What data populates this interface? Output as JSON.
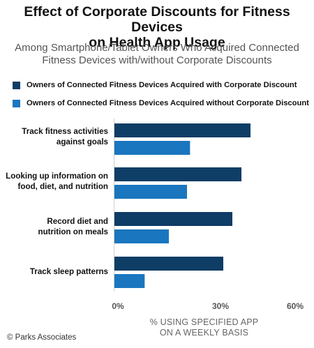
{
  "chart_data": {
    "type": "bar",
    "orientation": "horizontal",
    "title": "Effect of Corporate Discounts for Fitness Devices on Health App Usage",
    "subtitle": "Among Smartphone/Tablet Owners Who Acquired Connected Fitness Devices with/without Corporate Discounts",
    "categories": [
      "Track fitness activities against goals",
      "Looking up information on food, diet, and nutrition",
      "Record diet and nutrition on meals",
      "Track sleep patterns"
    ],
    "series": [
      {
        "name": "Owners of Connected Fitness Devices Acquired with Corporate Discount",
        "color": "#0e3d66",
        "values": [
          45,
          42,
          39,
          36
        ]
      },
      {
        "name": "Owners of Connected Fitness Devices Acquired without Corporate Discount",
        "color": "#1a76bf",
        "values": [
          25,
          24,
          18,
          10
        ]
      }
    ],
    "xlim": [
      0,
      60
    ],
    "xticks": [
      "0%",
      "30%",
      "60%"
    ],
    "xlabel": "% USING SPECIFIED APP ON A WEEKLY BASIS",
    "legend_position": "top",
    "grid": false
  },
  "page": {
    "title_line1": "Effect of Corporate Discounts for Fitness Devices",
    "title_line2": "on Health App Usage",
    "subtitle_line1": "Among Smartphone/Tablet Owners Who Acquired Connected",
    "subtitle_line2": "Fitness Devices with/without Corporate Discounts",
    "category_lines": [
      [
        "Track fitness activities",
        "against goals"
      ],
      [
        "Looking up information on",
        "food, diet, and nutrition"
      ],
      [
        "Record diet and",
        "nutrition on meals"
      ],
      [
        "Track sleep patterns"
      ]
    ],
    "xlabel_line1": "% USING SPECIFIED APP",
    "xlabel_line2": "ON A WEEKLY BASIS",
    "footer": "© Parks Associates"
  }
}
